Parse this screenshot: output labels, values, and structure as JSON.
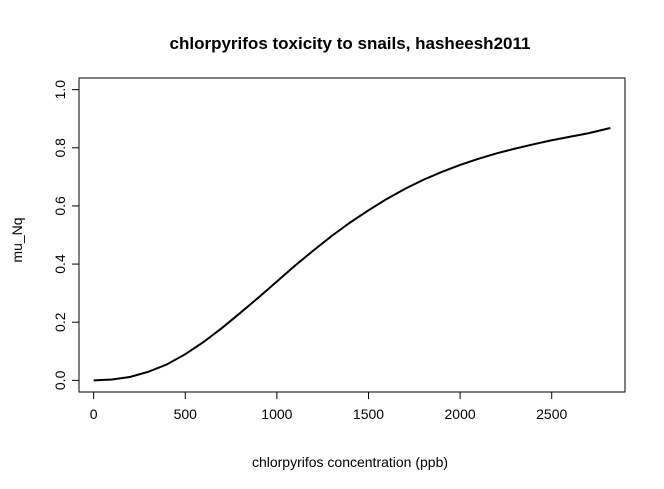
{
  "chart_data": {
    "type": "line",
    "title": "chlorpyrifos toxicity to snails, hasheesh2011",
    "xlabel": "chlorpyrifos concentration (ppb)",
    "ylabel": "mu_Nq",
    "xlim": [
      -80,
      2900
    ],
    "ylim": [
      -0.04,
      1.04
    ],
    "x_ticks": [
      0,
      500,
      1000,
      1500,
      2000,
      2500
    ],
    "y_ticks": [
      0.0,
      0.2,
      0.4,
      0.6,
      0.8,
      1.0
    ],
    "x_tick_labels": [
      "0",
      "500",
      "1000",
      "1500",
      "2000",
      "2500"
    ],
    "y_tick_labels": [
      "0.0",
      "0.2",
      "0.4",
      "0.6",
      "0.8",
      "1.0"
    ],
    "grid": false,
    "series": [
      {
        "color": "#000000",
        "x": [
          0,
          100,
          200,
          300,
          400,
          500,
          600,
          700,
          800,
          900,
          1000,
          1100,
          1200,
          1300,
          1400,
          1500,
          1600,
          1700,
          1800,
          1900,
          2000,
          2100,
          2200,
          2300,
          2400,
          2500,
          2600,
          2700,
          2820
        ],
        "y": [
          0.0,
          0.003,
          0.012,
          0.03,
          0.055,
          0.09,
          0.132,
          0.18,
          0.232,
          0.285,
          0.34,
          0.395,
          0.447,
          0.497,
          0.543,
          0.585,
          0.624,
          0.659,
          0.69,
          0.717,
          0.741,
          0.762,
          0.781,
          0.797,
          0.812,
          0.826,
          0.838,
          0.85,
          0.868
        ]
      }
    ]
  }
}
